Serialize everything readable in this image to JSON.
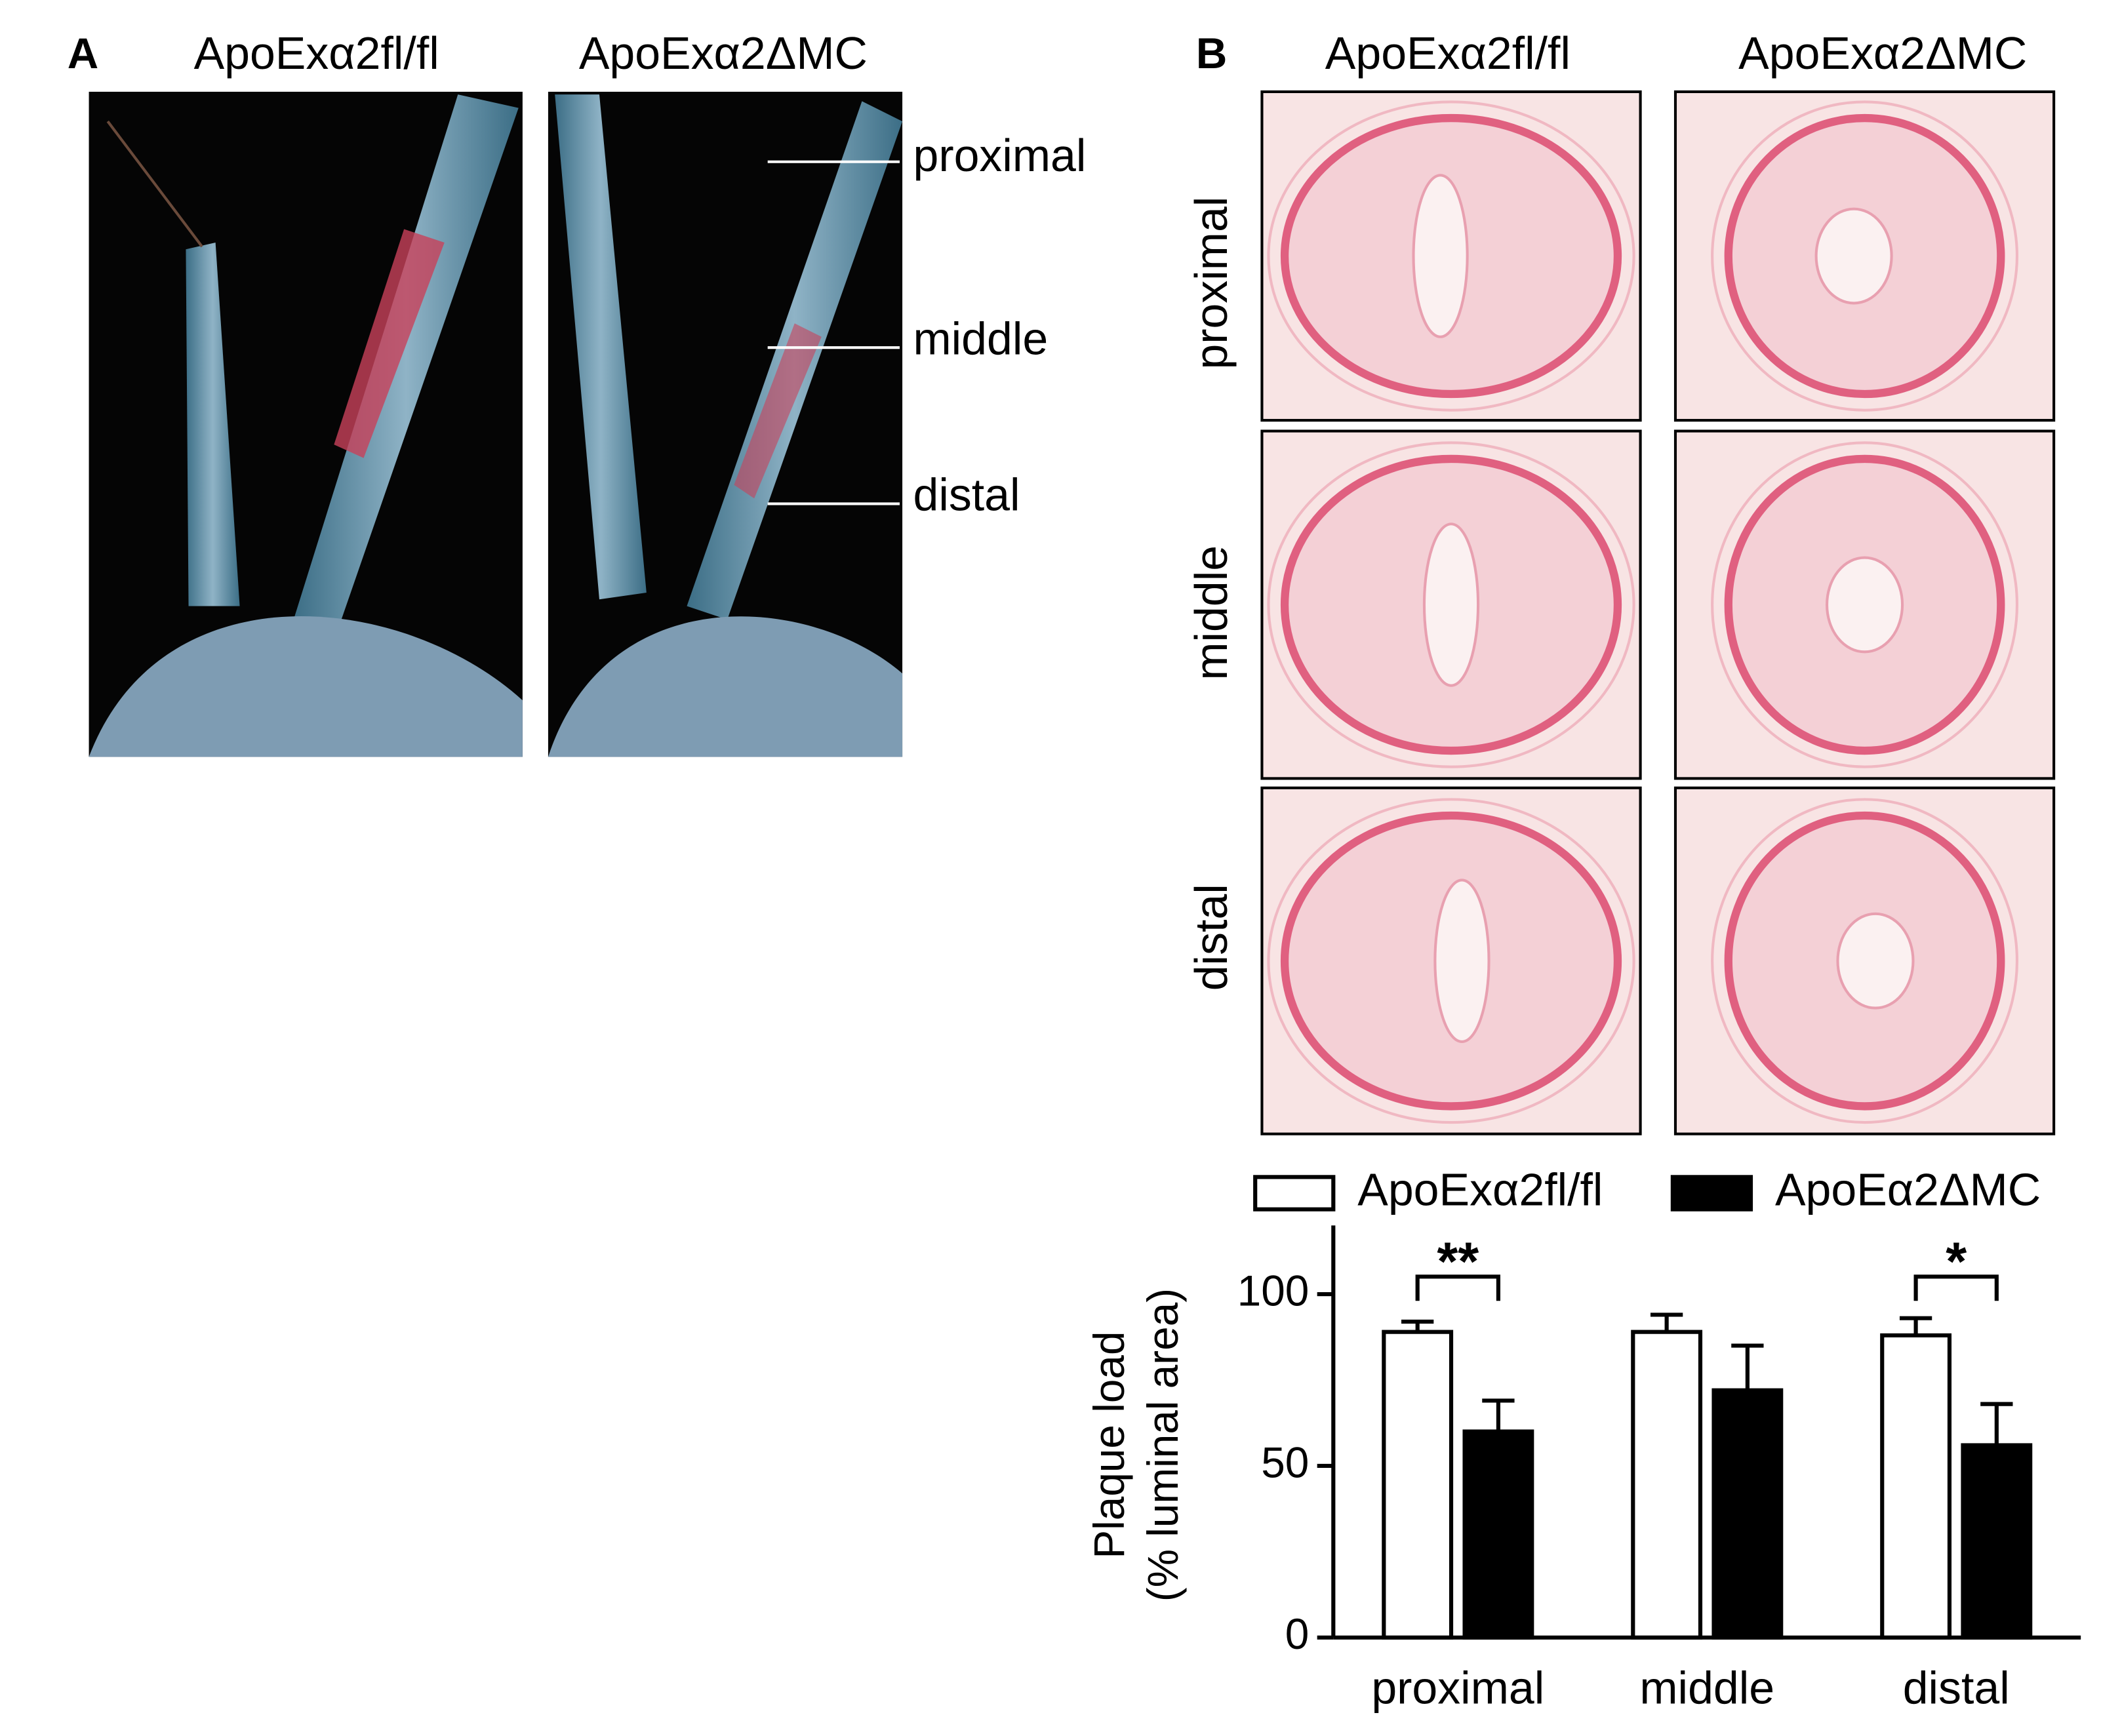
{
  "panel_a": {
    "label": "A",
    "columns": [
      "ApoExα2fl/fl",
      "ApoExα2ΔMC"
    ],
    "levels": [
      "proximal",
      "middle",
      "distal"
    ]
  },
  "panel_b": {
    "label": "B",
    "columns": [
      "ApoExα2fl/fl",
      "ApoExα2ΔMC"
    ],
    "rows": [
      "proximal",
      "middle",
      "distal"
    ]
  },
  "chart_data": {
    "type": "bar",
    "ylabel": [
      "Plaque load",
      "(% luminal area)"
    ],
    "categories": [
      "proximal",
      "middle",
      "distal"
    ],
    "series": [
      {
        "name": "ApoExα2fl/fl",
        "color": "#ffffff",
        "values": [
          89,
          89,
          88
        ],
        "errors": [
          3,
          5,
          5
        ]
      },
      {
        "name": "ApoEα2ΔMC",
        "color": "#000000",
        "values": [
          60,
          72,
          56
        ],
        "errors": [
          9,
          13,
          12
        ]
      }
    ],
    "significance": [
      "**",
      null,
      "*"
    ],
    "ylim": [
      0,
      120
    ],
    "yticks": [
      0,
      50,
      100
    ],
    "grid": false
  }
}
